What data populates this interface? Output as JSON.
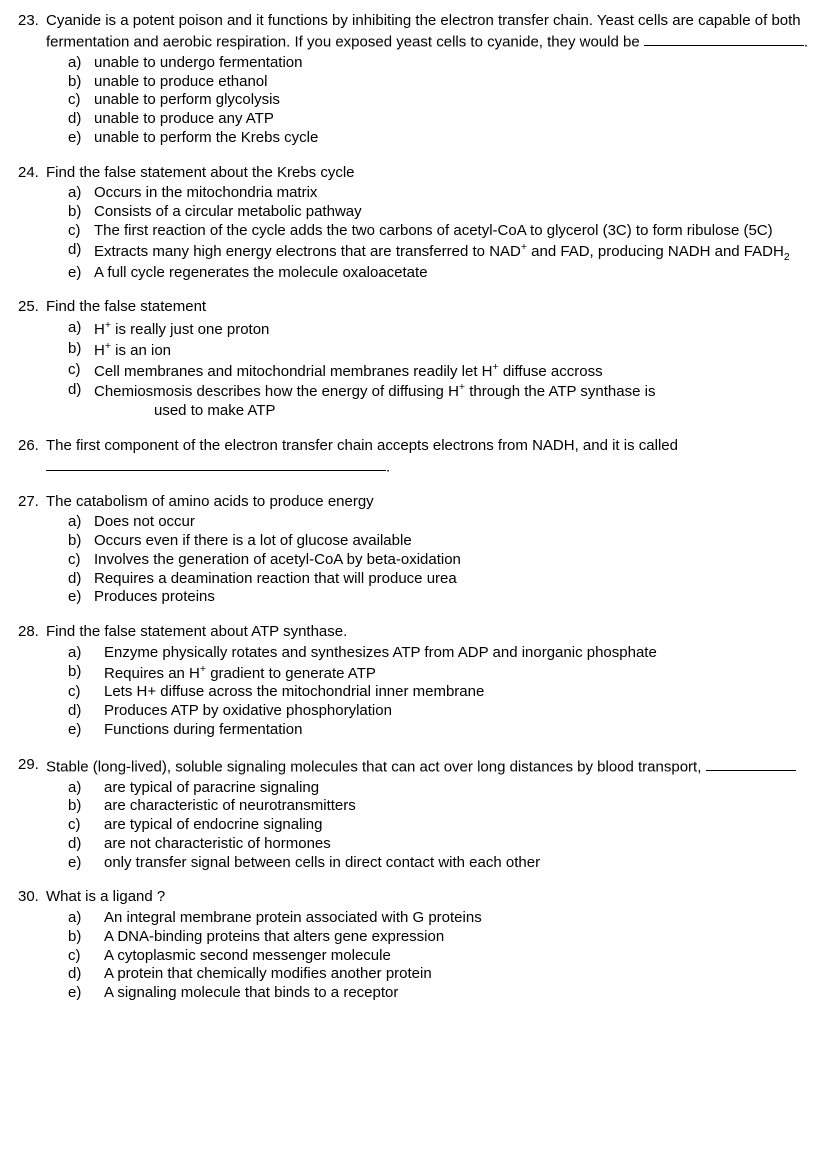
{
  "questions": [
    {
      "num": "23.",
      "stem_pre": "Cyanide is a potent poison and it functions by inhibiting the electron transfer chain.  Yeast cells are capable of both fermentation and aerobic respiration.  If you exposed yeast cells to cyanide, they would be ",
      "stem_post": ".",
      "blank": "med",
      "options": [
        {
          "l": "a)",
          "t": "unable to undergo fermentation"
        },
        {
          "l": "b)",
          "t": "unable to produce ethanol"
        },
        {
          "l": "c)",
          "t": "unable to perform glycolysis"
        },
        {
          "l": "d)",
          "t": "unable to produce any ATP"
        },
        {
          "l": "e)",
          "t": "unable to perform the Krebs cycle"
        }
      ]
    },
    {
      "num": "24.",
      "stem_pre": "Find the false statement about the Krebs cycle",
      "options": [
        {
          "l": "a)",
          "t": "Occurs in the mitochondria matrix"
        },
        {
          "l": "b)",
          "t": "Consists of a circular metabolic pathway"
        },
        {
          "l": "c)",
          "t": "The first reaction of the cycle adds the two carbons of acetyl-CoA to glycerol (3C) to form ribulose (5C)"
        },
        {
          "l": "d)",
          "html": "Extracts many high energy electrons that are transferred to NAD<sup>+</sup> and FAD, producing NADH and FADH<sub>2</sub>"
        },
        {
          "l": "e)",
          "t": "A full cycle regenerates the molecule oxaloacetate"
        }
      ]
    },
    {
      "num": "25.",
      "stem_pre": "Find the false statement",
      "options": [
        {
          "l": "a)",
          "html": "H<sup>+</sup> is really just one proton"
        },
        {
          "l": "b)",
          "html": "H<sup>+</sup> is an ion"
        },
        {
          "l": "c)",
          "html": "Cell membranes and mitochondrial membranes readily let H<sup>+</sup> diffuse accross"
        },
        {
          "l": "d)",
          "html": "Chemiosmosis describes how the energy of diffusing H<sup>+</sup> through the ATP synthase is<br><span style='padding-left:60px;'>used to make ATP</span>"
        }
      ]
    },
    {
      "num": "26.",
      "stem_pre": "The first component of the electron transfer chain accepts electrons from NADH, and it is called ",
      "stem_post": ".",
      "blank": "long",
      "options": []
    },
    {
      "num": "27.",
      "stem_pre": "The catabolism of amino acids to produce energy",
      "options": [
        {
          "l": "a)",
          "t": "Does not occur"
        },
        {
          "l": "b)",
          "t": "Occurs even if there is a lot of glucose available"
        },
        {
          "l": "c)",
          "t": "Involves the generation of acetyl-CoA by beta-oxidation"
        },
        {
          "l": "d)",
          "t": "Requires a deamination reaction that will produce urea"
        },
        {
          "l": "e)",
          "t": "Produces proteins"
        }
      ]
    },
    {
      "num": "28.",
      "stem_pre": "Find the false statement about ATP synthase.",
      "opt_indent": true,
      "options": [
        {
          "l": "a)",
          "t": "Enzyme physically rotates and synthesizes ATP from ADP and inorganic phosphate"
        },
        {
          "l": "b)",
          "html": "Requires an H<sup>+</sup> gradient to generate ATP"
        },
        {
          "l": "c)",
          "t": "Lets H+ diffuse across the mitochondrial inner membrane"
        },
        {
          "l": "d)",
          "t": "Produces ATP by oxidative phosphorylation"
        },
        {
          "l": "e)",
          "t": "Functions during fermentation"
        }
      ]
    },
    {
      "num": "29.",
      "stem_pre": "Stable (long-lived), soluble signaling molecules that can act over long distances by blood transport, ",
      "blank": "short",
      "opt_indent": true,
      "options": [
        {
          "l": "a)",
          "t": "are typical of paracrine signaling"
        },
        {
          "l": "b)",
          "t": "are characteristic of neurotransmitters"
        },
        {
          "l": "c)",
          "t": "are typical of endocrine signaling"
        },
        {
          "l": "d)",
          "t": "are not characteristic of hormones"
        },
        {
          "l": "e)",
          "t": "only transfer signal between cells in direct contact with each other"
        }
      ]
    },
    {
      "num": "30.",
      "stem_pre": "What is a ligand ?",
      "opt_indent": true,
      "options": [
        {
          "l": "a)",
          "t": "An integral membrane protein associated with G proteins"
        },
        {
          "l": "b)",
          "t": "A DNA-binding proteins that alters gene expression"
        },
        {
          "l": "c)",
          "t": "A cytoplasmic second messenger molecule"
        },
        {
          "l": "d)",
          "t": "A protein that chemically modifies another protein"
        },
        {
          "l": "e)",
          "t": "A signaling molecule that binds to a receptor"
        }
      ]
    }
  ]
}
